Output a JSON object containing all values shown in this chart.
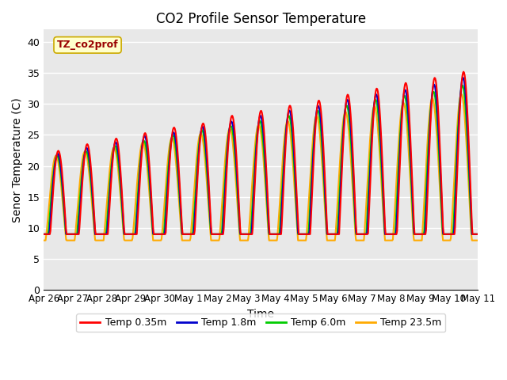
{
  "title": "CO2 Profile Sensor Temperature",
  "xlabel": "Time",
  "ylabel": "Senor Temperature (C)",
  "ylim": [
    0,
    42
  ],
  "yticks": [
    0,
    5,
    10,
    15,
    20,
    25,
    30,
    35,
    40
  ],
  "legend_label": "TZ_co2prof",
  "legend_box_color": "#ffffcc",
  "legend_box_edge": "#ccaa00",
  "series": [
    {
      "label": "Temp 0.35m",
      "color": "#ff0000"
    },
    {
      "label": "Temp 1.8m",
      "color": "#0000cc"
    },
    {
      "label": "Temp 6.0m",
      "color": "#00cc00"
    },
    {
      "label": "Temp 23.5m",
      "color": "#ffaa00"
    }
  ],
  "bg_color": "#e8e8e8",
  "grid_color": "#ffffff",
  "line_width": 1.5,
  "x_tick_labels": [
    "Apr 26",
    "Apr 27",
    "Apr 28",
    "Apr 29",
    "Apr 30",
    "May 1",
    "May 2",
    "May 3",
    "May 4",
    "May 5",
    "May 6",
    "May 7",
    "May 8",
    "May 9",
    "May 10",
    "May 11"
  ],
  "num_days": 15,
  "points_per_day": 48
}
